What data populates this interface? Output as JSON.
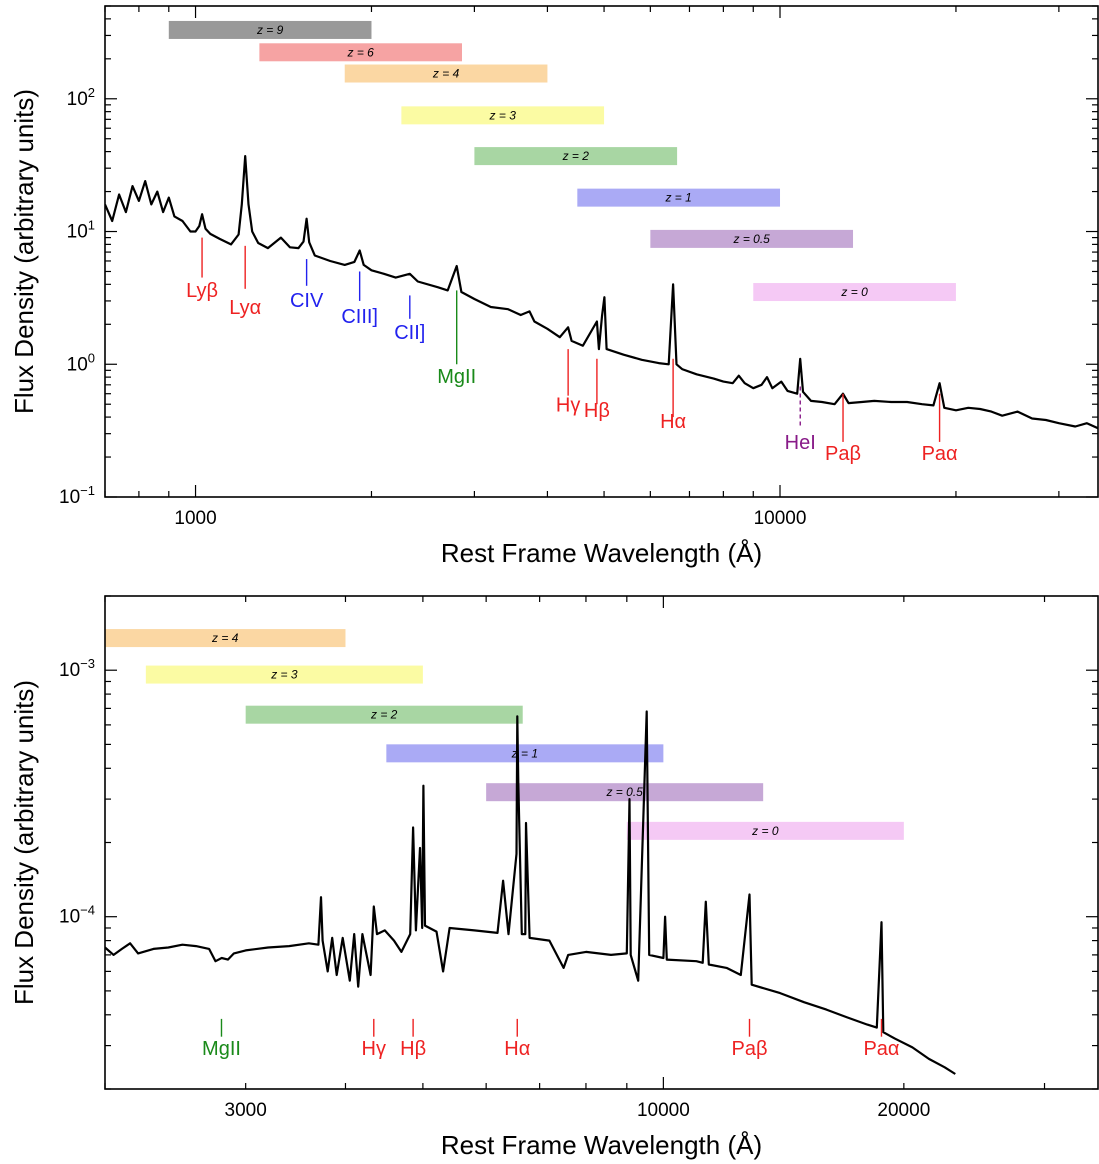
{
  "chart_data": [
    {
      "type": "line",
      "id": "top",
      "xlabel": "Rest Frame Wavelength (Å)",
      "ylabel": "Flux Density (arbitrary units)",
      "x_scale": "log",
      "y_scale": "log",
      "xlim": [
        700,
        35000
      ],
      "ylim": [
        0.1,
        500
      ],
      "x_ticks": [
        {
          "value": 1000,
          "label": "1000"
        },
        {
          "value": 10000,
          "label": "10000"
        }
      ],
      "y_ticks": [
        {
          "value": 0.1,
          "base": "10",
          "exp": "−1"
        },
        {
          "value": 1,
          "base": "10",
          "exp": "0"
        },
        {
          "value": 10,
          "base": "10",
          "exp": "1"
        },
        {
          "value": 100,
          "base": "10",
          "exp": "2"
        }
      ],
      "grid": false,
      "redshift_bands": [
        {
          "label": "z = 9",
          "x0": 900,
          "x1": 2000,
          "y": 330,
          "color": "#999999"
        },
        {
          "label": "z = 6",
          "x0": 1286,
          "x1": 2857,
          "y": 224,
          "color": "#f6a3a3"
        },
        {
          "label": "z = 4",
          "x0": 1800,
          "x1": 4000,
          "y": 155,
          "color": "#fbd7a3"
        },
        {
          "label": "z = 3",
          "x0": 2250,
          "x1": 5000,
          "y": 75,
          "color": "#fbfba3"
        },
        {
          "label": "z = 2",
          "x0": 3000,
          "x1": 6667,
          "y": 37,
          "color": "#a8d6a3"
        },
        {
          "label": "z = 1",
          "x0": 4500,
          "x1": 10000,
          "y": 18,
          "color": "#aaaaf5"
        },
        {
          "label": "z = 0.5",
          "x0": 6000,
          "x1": 13333,
          "y": 8.8,
          "color": "#c6a8d6"
        },
        {
          "label": "z = 0",
          "x0": 9000,
          "x1": 20000,
          "y": 3.5,
          "color": "#f5c9f5"
        }
      ],
      "lines": [
        {
          "name": "Lyβ",
          "x": 1026,
          "y_top": 9.0,
          "y_bottom": 4.5,
          "label_y": 3.2,
          "color": "#ee2222",
          "dashed": false
        },
        {
          "name": "Lyα",
          "x": 1216,
          "y_top": 7.8,
          "y_bottom": 3.7,
          "label_y": 2.4,
          "color": "#ee2222",
          "dashed": false
        },
        {
          "name": "CIV",
          "x": 1549,
          "y_top": 6.2,
          "y_bottom": 3.9,
          "label_y": 2.7,
          "color": "#2222ee",
          "dashed": false
        },
        {
          "name": "CIII]",
          "x": 1909,
          "y_top": 5.0,
          "y_bottom": 3.0,
          "label_y": 2.05,
          "color": "#2222ee",
          "dashed": false
        },
        {
          "name": "CII]",
          "x": 2326,
          "y_top": 3.3,
          "y_bottom": 2.2,
          "label_y": 1.55,
          "color": "#2222ee",
          "dashed": false
        },
        {
          "name": "MgII",
          "x": 2798,
          "y_top": 3.6,
          "y_bottom": 1.0,
          "label_y": 0.72,
          "color": "#1a8a1a",
          "dashed": false
        },
        {
          "name": "Hγ",
          "x": 4340,
          "y_top": 1.3,
          "y_bottom": 0.58,
          "label_y": 0.44,
          "color": "#ee2222",
          "dashed": false
        },
        {
          "name": "Hβ",
          "x": 4861,
          "y_top": 1.1,
          "y_bottom": 0.5,
          "label_y": 0.4,
          "color": "#ee2222",
          "dashed": false
        },
        {
          "name": "Hα",
          "x": 6563,
          "y_top": 1.1,
          "y_bottom": 0.4,
          "label_y": 0.33,
          "color": "#ee2222",
          "dashed": false
        },
        {
          "name": "HeI",
          "x": 10830,
          "y_top": 0.68,
          "y_bottom": 0.34,
          "label_y": 0.23,
          "color": "#881a88",
          "dashed": true
        },
        {
          "name": "Paβ",
          "x": 12818,
          "y_top": 0.6,
          "y_bottom": 0.26,
          "label_y": 0.19,
          "color": "#ee2222",
          "dashed": false
        },
        {
          "name": "Paα",
          "x": 18751,
          "y_top": 0.6,
          "y_bottom": 0.26,
          "label_y": 0.19,
          "color": "#ee2222",
          "dashed": false
        }
      ],
      "spectrum": [
        [
          700,
          16
        ],
        [
          720,
          12
        ],
        [
          740,
          19
        ],
        [
          760,
          14
        ],
        [
          780,
          22
        ],
        [
          800,
          17
        ],
        [
          820,
          24
        ],
        [
          840,
          16
        ],
        [
          860,
          20
        ],
        [
          880,
          14
        ],
        [
          900,
          18
        ],
        [
          920,
          13
        ],
        [
          950,
          12
        ],
        [
          980,
          10
        ],
        [
          1000,
          10
        ],
        [
          1015,
          11
        ],
        [
          1026,
          13.5
        ],
        [
          1040,
          10.5
        ],
        [
          1060,
          9.6
        ],
        [
          1100,
          8.8
        ],
        [
          1150,
          8.0
        ],
        [
          1185,
          9.5
        ],
        [
          1200,
          16
        ],
        [
          1216,
          37
        ],
        [
          1232,
          16
        ],
        [
          1250,
          10
        ],
        [
          1280,
          8.2
        ],
        [
          1330,
          7.5
        ],
        [
          1400,
          9.0
        ],
        [
          1450,
          7.6
        ],
        [
          1500,
          7.5
        ],
        [
          1530,
          8.4
        ],
        [
          1549,
          12.5
        ],
        [
          1565,
          8.3
        ],
        [
          1600,
          6.6
        ],
        [
          1700,
          6.0
        ],
        [
          1800,
          5.6
        ],
        [
          1870,
          5.9
        ],
        [
          1909,
          7.2
        ],
        [
          1940,
          5.6
        ],
        [
          2000,
          5.1
        ],
        [
          2100,
          4.8
        ],
        [
          2200,
          4.5
        ],
        [
          2326,
          4.8
        ],
        [
          2400,
          4.2
        ],
        [
          2600,
          3.8
        ],
        [
          2700,
          3.6
        ],
        [
          2798,
          5.5
        ],
        [
          2850,
          3.5
        ],
        [
          3000,
          3.1
        ],
        [
          3200,
          2.7
        ],
        [
          3426,
          2.6
        ],
        [
          3600,
          2.35
        ],
        [
          3727,
          2.5
        ],
        [
          3800,
          2.1
        ],
        [
          4000,
          1.85
        ],
        [
          4200,
          1.6
        ],
        [
          4340,
          1.9
        ],
        [
          4400,
          1.5
        ],
        [
          4600,
          1.38
        ],
        [
          4861,
          2.1
        ],
        [
          4900,
          1.3
        ],
        [
          4959,
          2.3
        ],
        [
          5007,
          3.2
        ],
        [
          5050,
          1.3
        ],
        [
          5400,
          1.18
        ],
        [
          5800,
          1.08
        ],
        [
          6200,
          1.02
        ],
        [
          6450,
          1.0
        ],
        [
          6563,
          4.0
        ],
        [
          6650,
          1.0
        ],
        [
          6800,
          0.92
        ],
        [
          7200,
          0.84
        ],
        [
          7700,
          0.78
        ],
        [
          8000,
          0.74
        ],
        [
          8300,
          0.72
        ],
        [
          8500,
          0.82
        ],
        [
          8700,
          0.72
        ],
        [
          9000,
          0.66
        ],
        [
          9300,
          0.7
        ],
        [
          9500,
          0.8
        ],
        [
          9700,
          0.66
        ],
        [
          10050,
          0.74
        ],
        [
          10300,
          0.63
        ],
        [
          10700,
          0.6
        ],
        [
          10830,
          1.1
        ],
        [
          10950,
          0.62
        ],
        [
          11300,
          0.53
        ],
        [
          11800,
          0.52
        ],
        [
          12400,
          0.5
        ],
        [
          12818,
          0.6
        ],
        [
          13100,
          0.51
        ],
        [
          13800,
          0.52
        ],
        [
          14500,
          0.53
        ],
        [
          15500,
          0.52
        ],
        [
          16500,
          0.52
        ],
        [
          17500,
          0.5
        ],
        [
          18300,
          0.49
        ],
        [
          18751,
          0.72
        ],
        [
          19100,
          0.47
        ],
        [
          20000,
          0.45
        ],
        [
          21000,
          0.47
        ],
        [
          22000,
          0.46
        ],
        [
          23000,
          0.44
        ],
        [
          24000,
          0.41
        ],
        [
          25500,
          0.44
        ],
        [
          27000,
          0.39
        ],
        [
          28500,
          0.38
        ],
        [
          30000,
          0.36
        ],
        [
          32000,
          0.34
        ],
        [
          33500,
          0.36
        ],
        [
          35000,
          0.33
        ]
      ]
    },
    {
      "type": "line",
      "id": "bottom",
      "xlabel": "Rest Frame Wavelength (Å)",
      "ylabel": "Flux Density (arbitrary units)",
      "x_scale": "log",
      "y_scale": "log",
      "xlim": [
        2000,
        35000
      ],
      "ylim": [
        2e-05,
        0.002
      ],
      "x_ticks": [
        {
          "value": 3000,
          "label": "3000"
        },
        {
          "value": 10000,
          "label": "10000"
        },
        {
          "value": 20000,
          "label": "20000"
        }
      ],
      "y_ticks": [
        {
          "value": 0.001,
          "base": "10",
          "exp": "−3"
        },
        {
          "value": 0.0001,
          "base": "10",
          "exp": "−4"
        }
      ],
      "grid": false,
      "redshift_bands": [
        {
          "label": "z = 4",
          "x0": 2000,
          "x1": 4000,
          "y": 0.00135,
          "color": "#fbd7a3"
        },
        {
          "label": "z = 3",
          "x0": 2250,
          "x1": 5000,
          "y": 0.00096,
          "color": "#fbfba3"
        },
        {
          "label": "z = 2",
          "x0": 3000,
          "x1": 6667,
          "y": 0.00066,
          "color": "#a8d6a3"
        },
        {
          "label": "z = 1",
          "x0": 4500,
          "x1": 10000,
          "y": 0.00046,
          "color": "#aaaaf5"
        },
        {
          "label": "z = 0.5",
          "x0": 6000,
          "x1": 13333,
          "y": 0.00032,
          "color": "#c6a8d6"
        },
        {
          "label": "z = 0",
          "x0": 9000,
          "x1": 20000,
          "y": 0.000223,
          "color": "#f5c9f5"
        }
      ],
      "lines": [
        {
          "name": "MgII",
          "x": 2798,
          "y_top": 3.85e-05,
          "y_bottom": 3.26e-05,
          "label_y": 2.75e-05,
          "color": "#1a8a1a",
          "dashed": false
        },
        {
          "name": "Hγ",
          "x": 4340,
          "y_top": 3.85e-05,
          "y_bottom": 3.26e-05,
          "label_y": 2.75e-05,
          "color": "#ee2222",
          "dashed": false
        },
        {
          "name": "Hβ",
          "x": 4861,
          "y_top": 3.85e-05,
          "y_bottom": 3.26e-05,
          "label_y": 2.75e-05,
          "color": "#ee2222",
          "dashed": false
        },
        {
          "name": "Hα",
          "x": 6563,
          "y_top": 3.85e-05,
          "y_bottom": 3.26e-05,
          "label_y": 2.75e-05,
          "color": "#ee2222",
          "dashed": false
        },
        {
          "name": "Paβ",
          "x": 12818,
          "y_top": 3.85e-05,
          "y_bottom": 3.26e-05,
          "label_y": 2.75e-05,
          "color": "#ee2222",
          "dashed": false
        },
        {
          "name": "Paα",
          "x": 18751,
          "y_top": 3.85e-05,
          "y_bottom": 3.26e-05,
          "label_y": 2.75e-05,
          "color": "#ee2222",
          "dashed": false
        }
      ],
      "spectrum": [
        [
          2000,
          7.5e-05
        ],
        [
          2050,
          7e-05
        ],
        [
          2100,
          7.4e-05
        ],
        [
          2150,
          7.8e-05
        ],
        [
          2200,
          7.1e-05
        ],
        [
          2300,
          7.4e-05
        ],
        [
          2400,
          7.5e-05
        ],
        [
          2500,
          7.7e-05
        ],
        [
          2600,
          7.6e-05
        ],
        [
          2700,
          7.4e-05
        ],
        [
          2750,
          6.6e-05
        ],
        [
          2800,
          6.8e-05
        ],
        [
          2850,
          6.7e-05
        ],
        [
          2900,
          7.1e-05
        ],
        [
          3000,
          7.3e-05
        ],
        [
          3200,
          7.5e-05
        ],
        [
          3400,
          7.6e-05
        ],
        [
          3600,
          7.8e-05
        ],
        [
          3700,
          7.7e-05
        ],
        [
          3727,
          0.00012
        ],
        [
          3745,
          8e-05
        ],
        [
          3800,
          6e-05
        ],
        [
          3850,
          8.2e-05
        ],
        [
          3900,
          5.8e-05
        ],
        [
          3968,
          8.2e-05
        ],
        [
          4050,
          5.5e-05
        ],
        [
          4102,
          8.5e-05
        ],
        [
          4150,
          5.2e-05
        ],
        [
          4200,
          8.5e-05
        ],
        [
          4300,
          5.8e-05
        ],
        [
          4340,
          0.00011
        ],
        [
          4380,
          8.5e-05
        ],
        [
          4480,
          8.8e-05
        ],
        [
          4600,
          8e-05
        ],
        [
          4700,
          7.2e-05
        ],
        [
          4820,
          8.5e-05
        ],
        [
          4861,
          0.00023
        ],
        [
          4900,
          8.8e-05
        ],
        [
          4959,
          0.00019
        ],
        [
          4990,
          9e-05
        ],
        [
          5007,
          0.00034
        ],
        [
          5030,
          9.2e-05
        ],
        [
          5200,
          8.7e-05
        ],
        [
          5300,
          6e-05
        ],
        [
          5400,
          9e-05
        ],
        [
          5800,
          8.8e-05
        ],
        [
          6200,
          8.6e-05
        ],
        [
          6300,
          0.00014
        ],
        [
          6400,
          8.5e-05
        ],
        [
          6548,
          0.00018
        ],
        [
          6563,
          0.00065
        ],
        [
          6583,
          0.00035
        ],
        [
          6650,
          8.5e-05
        ],
        [
          6716,
          8.5e-05
        ],
        [
          6731,
          0.00024
        ],
        [
          6800,
          8.2e-05
        ],
        [
          7200,
          8e-05
        ],
        [
          7500,
          6.2e-05
        ],
        [
          7600,
          7e-05
        ],
        [
          8000,
          7.2e-05
        ],
        [
          8600,
          7e-05
        ],
        [
          9000,
          7.1e-05
        ],
        [
          9069,
          0.0003
        ],
        [
          9100,
          7e-05
        ],
        [
          9300,
          5.5e-05
        ],
        [
          9531,
          0.00068
        ],
        [
          9600,
          7e-05
        ],
        [
          10000,
          6.8e-05
        ],
        [
          10050,
          0.0001
        ],
        [
          10100,
          6.7e-05
        ],
        [
          11000,
          6.6e-05
        ],
        [
          11200,
          6.5e-05
        ],
        [
          11300,
          0.000115
        ],
        [
          11400,
          6.4e-05
        ],
        [
          12000,
          6.2e-05
        ],
        [
          12500,
          5.8e-05
        ],
        [
          12818,
          0.000123
        ],
        [
          12900,
          5.3e-05
        ],
        [
          14000,
          4.9e-05
        ],
        [
          15000,
          4.5e-05
        ],
        [
          16000,
          4.2e-05
        ],
        [
          17000,
          3.9e-05
        ],
        [
          18000,
          3.65e-05
        ],
        [
          18500,
          3.55e-05
        ],
        [
          18751,
          9.5e-05
        ],
        [
          18850,
          3.4e-05
        ],
        [
          19500,
          3.2e-05
        ],
        [
          20500,
          2.95e-05
        ],
        [
          21500,
          2.65e-05
        ],
        [
          22500,
          2.45e-05
        ],
        [
          23200,
          2.3e-05
        ]
      ]
    }
  ]
}
